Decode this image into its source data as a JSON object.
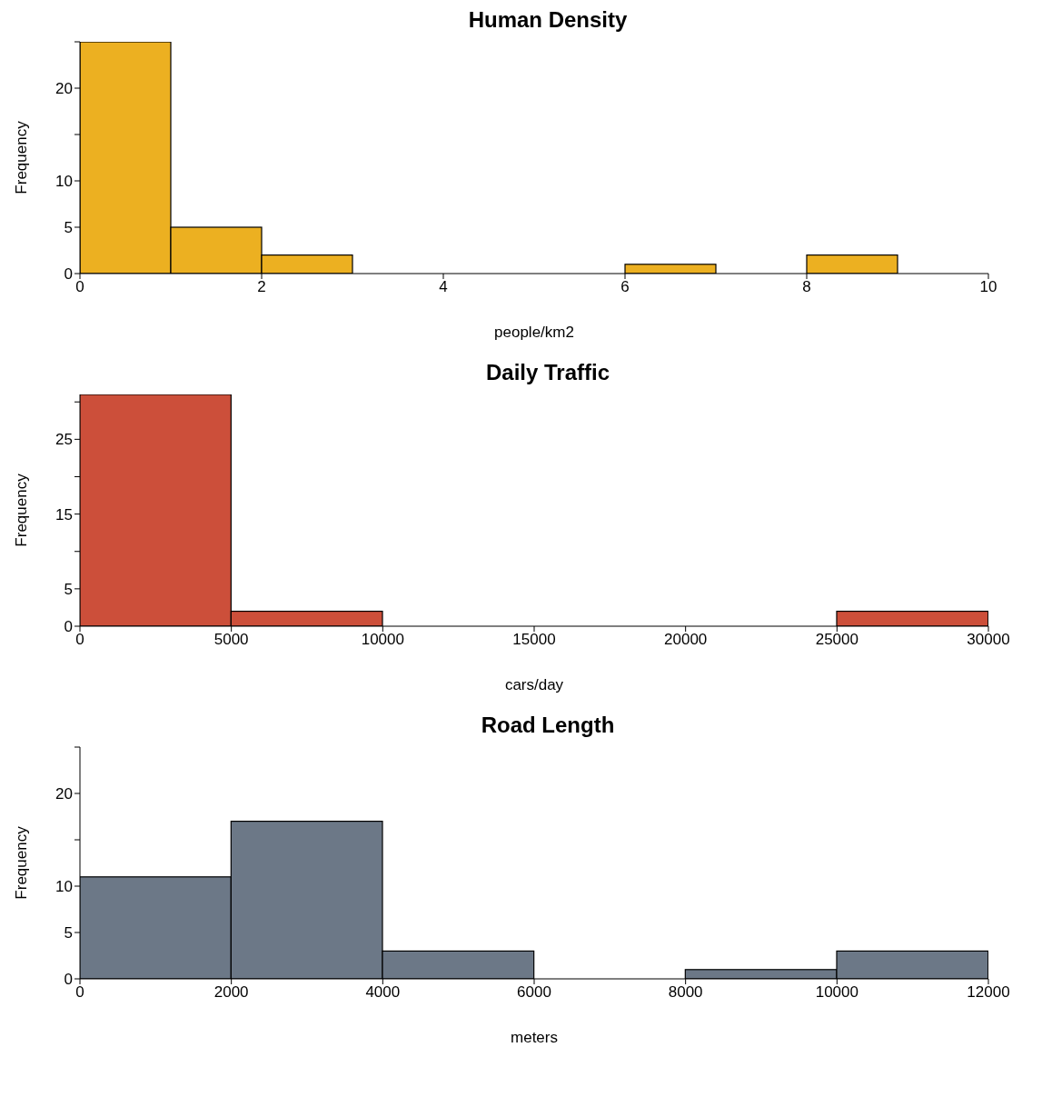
{
  "chart_data": [
    {
      "type": "histogram",
      "title": "Human Density",
      "xlabel": "people/km2",
      "ylabel": "Frequency",
      "color": "#ecb021",
      "bins": [
        0,
        1,
        2,
        3,
        4,
        5,
        6,
        7,
        8,
        9
      ],
      "values": [
        25,
        5,
        2,
        0,
        0,
        0,
        1,
        0,
        2
      ],
      "xlim": [
        0,
        10
      ],
      "xticks": [
        0,
        2,
        4,
        6,
        8,
        10
      ],
      "ylim": [
        0,
        25
      ],
      "yticks": [
        0,
        5,
        10,
        {
          "value": 15,
          "label": null
        },
        20,
        {
          "value": 25,
          "label": null
        }
      ]
    },
    {
      "type": "histogram",
      "title": "Daily Traffic",
      "xlabel": "cars/day",
      "ylabel": "Frequency",
      "color": "#cc4f3a",
      "bins": [
        0,
        5000,
        10000,
        15000,
        20000,
        25000,
        30000
      ],
      "values": [
        31,
        2,
        0,
        0,
        0,
        2
      ],
      "xlim": [
        0,
        30000
      ],
      "xticks": [
        0,
        5000,
        10000,
        15000,
        20000,
        25000,
        30000
      ],
      "ylim": [
        0,
        31
      ],
      "yticks": [
        0,
        5,
        {
          "value": 10,
          "label": null
        },
        15,
        {
          "value": 20,
          "label": null
        },
        25,
        {
          "value": 30,
          "label": null
        }
      ]
    },
    {
      "type": "histogram",
      "title": "Road Length",
      "xlabel": "meters",
      "ylabel": "Frequency",
      "color": "#6c7887",
      "bins": [
        0,
        2000,
        4000,
        6000,
        8000,
        10000,
        12000
      ],
      "values": [
        11,
        17,
        3,
        0,
        1,
        3
      ],
      "xlim": [
        0,
        12000
      ],
      "xticks": [
        0,
        2000,
        4000,
        6000,
        8000,
        10000,
        12000
      ],
      "ylim": [
        0,
        25
      ],
      "yticks": [
        0,
        5,
        10,
        {
          "value": 15,
          "label": null
        },
        20,
        {
          "value": 25,
          "label": null
        }
      ]
    }
  ]
}
